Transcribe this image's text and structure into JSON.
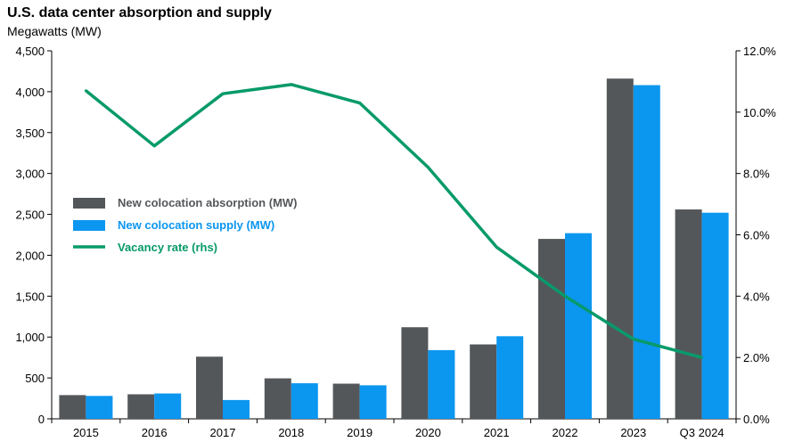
{
  "chart_data": {
    "type": "bar",
    "title": "U.S. data center absorption and supply",
    "subtitle": "Megawatts (MW)",
    "categories": [
      "2015",
      "2016",
      "2017",
      "2018",
      "2019",
      "2020",
      "2021",
      "2022",
      "2023",
      "Q3 2024"
    ],
    "series": [
      {
        "name": "New colocation absorption (MW)",
        "kind": "bar",
        "axis": "left",
        "color": "#54575a",
        "values": [
          290,
          300,
          760,
          495,
          430,
          1120,
          910,
          2200,
          4160,
          2560
        ]
      },
      {
        "name": "New colocation supply (MW)",
        "kind": "bar",
        "axis": "left",
        "color": "#0b96f0",
        "values": [
          280,
          310,
          230,
          435,
          410,
          840,
          1010,
          2270,
          4080,
          2520
        ]
      },
      {
        "name": "Vacancy rate (rhs)",
        "kind": "line",
        "axis": "right",
        "color": "#079a6a",
        "values": [
          10.7,
          8.9,
          10.6,
          10.9,
          10.3,
          8.2,
          5.6,
          4.0,
          2.6,
          2.0
        ]
      }
    ],
    "y_left": {
      "min": 0,
      "max": 4500,
      "step": 500,
      "tick_labels": [
        "0",
        "500",
        "1,000",
        "1,500",
        "2,000",
        "2,500",
        "3,000",
        "3,500",
        "4,000",
        "4,500"
      ]
    },
    "y_right": {
      "min": 0,
      "max": 12,
      "step": 2,
      "tick_labels": [
        "0.0%",
        "2.0%",
        "4.0%",
        "6.0%",
        "8.0%",
        "10.0%",
        "12.0%"
      ]
    },
    "grid": false,
    "legend_position": "left"
  }
}
